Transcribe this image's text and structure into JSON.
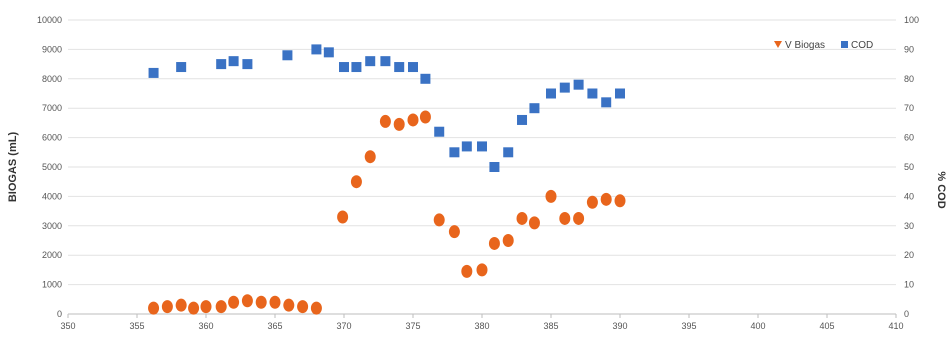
{
  "chart_data": {
    "type": "scatter",
    "title": "",
    "xlabel": "",
    "ylabel_left": "BIOGAS (mL)",
    "ylabel_right": "% COD",
    "xlim": [
      350,
      410
    ],
    "x_ticks": [
      "350",
      "355",
      "360",
      "365",
      "370",
      "375",
      "380",
      "385",
      "390",
      "395",
      "400",
      "405",
      "410"
    ],
    "ylim_left": [
      0,
      10000
    ],
    "left_ticks": [
      "0",
      "1000",
      "2000",
      "3000",
      "4000",
      "5000",
      "6000",
      "7000",
      "8000",
      "9000",
      "10000"
    ],
    "ylim_right": [
      0,
      100
    ],
    "right_ticks": [
      "0",
      "10",
      "20",
      "30",
      "40",
      "50",
      "60",
      "70",
      "80",
      "90",
      "100"
    ],
    "grid": true,
    "legend_position": "top-right",
    "series": [
      {
        "name": "V Biogas",
        "axis": "left",
        "color": "#e8651c",
        "marker": "circle",
        "points": [
          [
            356.2,
            200
          ],
          [
            357.2,
            250
          ],
          [
            358.2,
            300
          ],
          [
            359.1,
            200
          ],
          [
            360.0,
            250
          ],
          [
            361.1,
            250
          ],
          [
            362.0,
            400
          ],
          [
            363.0,
            450
          ],
          [
            364.0,
            400
          ],
          [
            365.0,
            400
          ],
          [
            366.0,
            300
          ],
          [
            367.0,
            250
          ],
          [
            368.0,
            200
          ],
          [
            369.9,
            3300
          ],
          [
            370.9,
            4500
          ],
          [
            371.9,
            5350
          ],
          [
            373.0,
            6550
          ],
          [
            374.0,
            6450
          ],
          [
            375.0,
            6600
          ],
          [
            375.9,
            6700
          ],
          [
            376.9,
            3200
          ],
          [
            378.0,
            2800
          ],
          [
            378.9,
            1450
          ],
          [
            380.0,
            1500
          ],
          [
            380.9,
            2400
          ],
          [
            381.9,
            2500
          ],
          [
            382.9,
            3250
          ],
          [
            383.8,
            3100
          ],
          [
            385.0,
            4000
          ],
          [
            386.0,
            3250
          ],
          [
            387.0,
            3250
          ],
          [
            388.0,
            3800
          ],
          [
            389.0,
            3900
          ],
          [
            390.0,
            3850
          ]
        ]
      },
      {
        "name": "COD",
        "axis": "right",
        "color": "#3a72c4",
        "marker": "square",
        "points": [
          [
            356.2,
            82
          ],
          [
            358.2,
            84
          ],
          [
            361.1,
            85
          ],
          [
            362.0,
            86
          ],
          [
            363.0,
            85
          ],
          [
            365.9,
            88
          ],
          [
            368.0,
            90
          ],
          [
            368.9,
            89
          ],
          [
            370.0,
            84
          ],
          [
            370.9,
            84
          ],
          [
            371.9,
            86
          ],
          [
            373.0,
            86
          ],
          [
            374.0,
            84
          ],
          [
            375.0,
            84
          ],
          [
            375.9,
            80
          ],
          [
            376.9,
            62
          ],
          [
            378.0,
            55
          ],
          [
            378.9,
            57
          ],
          [
            380.0,
            57
          ],
          [
            380.9,
            50
          ],
          [
            381.9,
            55
          ],
          [
            382.9,
            66
          ],
          [
            383.8,
            70
          ],
          [
            385.0,
            75
          ],
          [
            386.0,
            77
          ],
          [
            387.0,
            78
          ],
          [
            388.0,
            75
          ],
          [
            389.0,
            72
          ],
          [
            390.0,
            75
          ]
        ]
      }
    ],
    "legend": [
      "V Biogas",
      "COD"
    ]
  }
}
